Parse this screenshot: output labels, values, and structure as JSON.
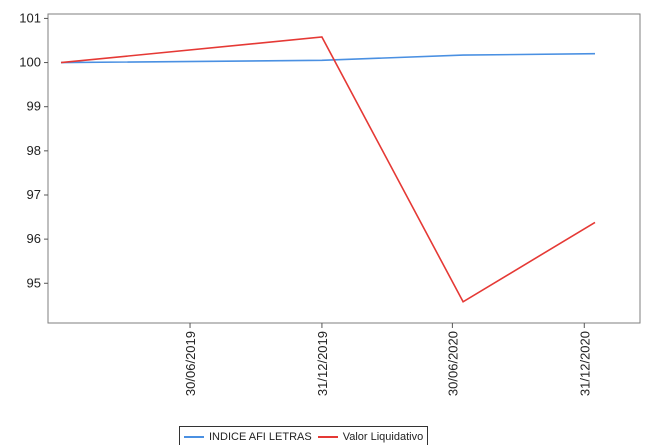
{
  "chart_data": {
    "type": "line",
    "x": [
      "30/06/2019",
      "31/12/2019",
      "30/06/2020",
      "31/12/2020"
    ],
    "y_ticks": [
      101,
      100,
      99,
      98,
      97,
      96,
      95
    ],
    "ylim": [
      94.1,
      101.1
    ],
    "grid": false,
    "legend_position": "bottom-center",
    "series": [
      {
        "name": "INDICE AFI LETRAS",
        "color": "#4a90e2",
        "points": [
          {
            "x": "2019-01-01",
            "y": 100.0
          },
          {
            "x": "2019-12-31",
            "y": 100.05
          },
          {
            "x": "2020-07-15",
            "y": 100.17
          },
          {
            "x": "2021-01-15",
            "y": 100.2
          }
        ]
      },
      {
        "name": "Valor Liquidativo",
        "color": "#e53935",
        "points": [
          {
            "x": "2019-01-01",
            "y": 100.0
          },
          {
            "x": "2019-12-31",
            "y": 100.58
          },
          {
            "x": "2020-07-15",
            "y": 94.58
          },
          {
            "x": "2021-01-15",
            "y": 96.38
          }
        ]
      }
    ]
  }
}
